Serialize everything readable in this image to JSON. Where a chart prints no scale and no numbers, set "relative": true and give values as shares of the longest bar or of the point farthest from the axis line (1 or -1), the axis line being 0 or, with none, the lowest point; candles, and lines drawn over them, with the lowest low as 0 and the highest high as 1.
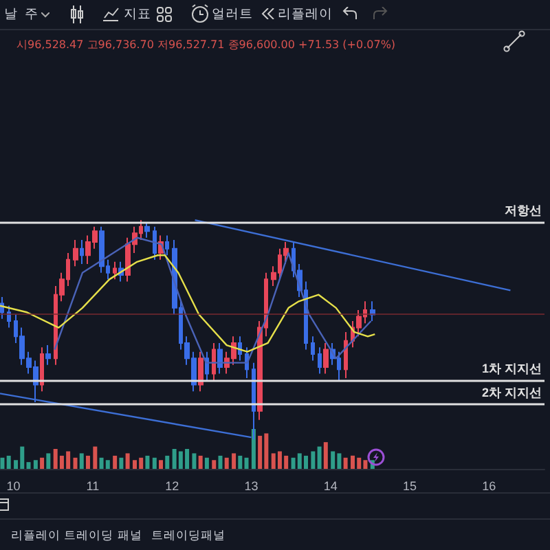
{
  "chart_data": [
    {
      "type": "candlestick",
      "relative": true,
      "tick_labels": false,
      "xlim": [
        9.83,
        16.7
      ],
      "xticks": [
        10,
        11,
        12,
        13,
        14,
        15,
        16
      ],
      "annotations": [
        "날",
        "주",
        "지표",
        "얼러트",
        "리플레이",
        "시96,528.47 고96,736.70 저96,527.71 종96,600.00 +71.53 (+0.07%)"
      ],
      "x": [
        9.86,
        9.94,
        10.03,
        10.11,
        10.19,
        10.28,
        10.36,
        10.44,
        10.53,
        10.61,
        10.69,
        10.78,
        10.86,
        10.94,
        11.03,
        11.11,
        11.19,
        11.28,
        11.36,
        11.44,
        11.53,
        11.61,
        11.69,
        11.78,
        11.86,
        11.94,
        12.03,
        12.11,
        12.19,
        12.28,
        12.36,
        12.44,
        12.53,
        12.61,
        12.69,
        12.78,
        12.86,
        12.94,
        13.03,
        13.11,
        13.19,
        13.28,
        13.36,
        13.44,
        13.53,
        13.61,
        13.69,
        13.78,
        13.86,
        13.94,
        14.03,
        14.11,
        14.19,
        14.28,
        14.36,
        14.44,
        14.53
      ],
      "ohlc": [
        [
          0.62,
          0.65,
          0.55,
          0.58
        ],
        [
          0.58,
          0.61,
          0.51,
          0.54
        ],
        [
          0.54,
          0.57,
          0.44,
          0.47
        ],
        [
          0.47,
          0.51,
          0.34,
          0.37
        ],
        [
          0.37,
          0.4,
          0.3,
          0.33
        ],
        [
          0.33,
          0.36,
          0.17,
          0.25
        ],
        [
          0.25,
          0.42,
          0.22,
          0.39
        ],
        [
          0.39,
          0.43,
          0.34,
          0.37
        ],
        [
          0.37,
          0.7,
          0.34,
          0.66
        ],
        [
          0.66,
          0.76,
          0.63,
          0.73
        ],
        [
          0.73,
          0.85,
          0.7,
          0.82
        ],
        [
          0.82,
          0.91,
          0.79,
          0.87
        ],
        [
          0.87,
          0.91,
          0.8,
          0.84
        ],
        [
          0.84,
          0.93,
          0.8,
          0.9
        ],
        [
          0.9,
          0.97,
          0.87,
          0.95
        ],
        [
          0.95,
          0.97,
          0.76,
          0.79
        ],
        [
          0.79,
          0.82,
          0.73,
          0.76
        ],
        [
          0.76,
          0.81,
          0.73,
          0.78
        ],
        [
          0.78,
          0.81,
          0.72,
          0.75
        ],
        [
          0.75,
          0.92,
          0.72,
          0.89
        ],
        [
          0.89,
          0.97,
          0.85,
          0.94
        ],
        [
          0.94,
          1.0,
          0.91,
          0.97
        ],
        [
          0.97,
          0.99,
          0.92,
          0.95
        ],
        [
          0.95,
          0.97,
          0.82,
          0.85
        ],
        [
          0.85,
          0.93,
          0.82,
          0.9
        ],
        [
          0.9,
          0.93,
          0.84,
          0.87
        ],
        [
          0.87,
          0.91,
          0.57,
          0.6
        ],
        [
          0.6,
          0.63,
          0.41,
          0.44
        ],
        [
          0.44,
          0.47,
          0.34,
          0.37
        ],
        [
          0.37,
          0.4,
          0.22,
          0.25
        ],
        [
          0.25,
          0.4,
          0.22,
          0.37
        ],
        [
          0.37,
          0.4,
          0.27,
          0.3
        ],
        [
          0.3,
          0.44,
          0.27,
          0.41
        ],
        [
          0.41,
          0.44,
          0.3,
          0.33
        ],
        [
          0.33,
          0.4,
          0.3,
          0.37
        ],
        [
          0.37,
          0.47,
          0.34,
          0.44
        ],
        [
          0.44,
          0.47,
          0.36,
          0.39
        ],
        [
          0.39,
          0.42,
          0.28,
          0.32
        ],
        [
          0.32,
          0.35,
          0.0,
          0.13
        ],
        [
          0.13,
          0.54,
          0.09,
          0.51
        ],
        [
          0.51,
          0.76,
          0.47,
          0.73
        ],
        [
          0.73,
          0.79,
          0.7,
          0.76
        ],
        [
          0.76,
          0.87,
          0.73,
          0.84
        ],
        [
          0.84,
          0.9,
          0.8,
          0.87
        ],
        [
          0.87,
          0.9,
          0.74,
          0.77
        ],
        [
          0.77,
          0.8,
          0.65,
          0.68
        ],
        [
          0.68,
          0.72,
          0.41,
          0.44
        ],
        [
          0.44,
          0.47,
          0.36,
          0.39
        ],
        [
          0.39,
          0.42,
          0.3,
          0.33
        ],
        [
          0.33,
          0.44,
          0.3,
          0.41
        ],
        [
          0.41,
          0.44,
          0.34,
          0.37
        ],
        [
          0.37,
          0.4,
          0.27,
          0.32
        ],
        [
          0.32,
          0.49,
          0.28,
          0.45
        ],
        [
          0.45,
          0.54,
          0.42,
          0.51
        ],
        [
          0.51,
          0.59,
          0.47,
          0.56
        ],
        [
          0.56,
          0.63,
          0.53,
          0.59
        ],
        [
          0.59,
          0.63,
          0.54,
          0.57
        ]
      ],
      "colors": [
        "#3a6ee8",
        "#3a6ee8",
        "#3a6ee8",
        "#3a6ee8",
        "#3a6ee8",
        "#3a6ee8",
        "#e8475a",
        "#3a6ee8",
        "#e8475a",
        "#e8475a",
        "#e8475a",
        "#e8475a",
        "#3a6ee8",
        "#e8475a",
        "#e8475a",
        "#3a6ee8",
        "#3a6ee8",
        "#e8475a",
        "#3a6ee8",
        "#e8475a",
        "#e8475a",
        "#e8475a",
        "#3a6ee8",
        "#3a6ee8",
        "#e8475a",
        "#3a6ee8",
        "#3a6ee8",
        "#3a6ee8",
        "#3a6ee8",
        "#3a6ee8",
        "#e8475a",
        "#3a6ee8",
        "#e8475a",
        "#3a6ee8",
        "#e8475a",
        "#e8475a",
        "#3a6ee8",
        "#3a6ee8",
        "#3a6ee8",
        "#e8475a",
        "#e8475a",
        "#e8475a",
        "#e8475a",
        "#e8475a",
        "#3a6ee8",
        "#3a6ee8",
        "#3a6ee8",
        "#3a6ee8",
        "#3a6ee8",
        "#e8475a",
        "#3a6ee8",
        "#3a6ee8",
        "#e8475a",
        "#e8475a",
        "#e8475a",
        "#e8475a",
        "#3a6ee8"
      ],
      "series": [
        {
          "type": "line",
          "color": "#e6e04a",
          "x": [
            9.83,
            10.17,
            10.57,
            10.87,
            11.21,
            11.56,
            11.82,
            11.91,
            12.08,
            12.34,
            12.69,
            12.95,
            13.21,
            13.47,
            13.6,
            13.85,
            14.07,
            14.3,
            14.47,
            14.56
          ],
          "values": [
            0.61,
            0.58,
            0.51,
            0.6,
            0.73,
            0.81,
            0.84,
            0.84,
            0.76,
            0.57,
            0.43,
            0.4,
            0.44,
            0.6,
            0.63,
            0.66,
            0.6,
            0.49,
            0.47,
            0.48
          ]
        },
        {
          "type": "line",
          "color": "#4a63b8",
          "x": [
            10.52,
            10.87,
            11.56,
            11.87,
            12.17,
            12.43,
            12.95,
            13.21,
            13.47,
            13.73,
            14.07,
            14.51
          ],
          "values": [
            0.41,
            0.76,
            0.92,
            0.89,
            0.57,
            0.35,
            0.35,
            0.57,
            0.85,
            0.57,
            0.37,
            0.54
          ]
        },
        {
          "type": "line",
          "color": "#3d6fd6",
          "x": [
            12.29,
            16.27
          ],
          "values": [
            1.0,
            0.68
          ]
        },
        {
          "type": "line",
          "color": "#3d6fd6",
          "x": [
            9.83,
            13.0
          ],
          "values": [
            0.21,
            0.01
          ]
        }
      ],
      "ref_lines": [
        {
          "axis": "y",
          "value": 0.99,
          "label": "저항선",
          "color": "#e0e0e0"
        },
        {
          "axis": "y",
          "value": 0.27,
          "label": "1차 지지선",
          "color": "#e0e0e0"
        },
        {
          "axis": "y",
          "value": 0.16,
          "label": "2차 지지선",
          "color": "#e0e0e0"
        },
        {
          "axis": "y",
          "value": 0.57,
          "label": null,
          "color": "#7a2a30"
        }
      ]
    },
    {
      "type": "bar",
      "relative": true,
      "xlim": [
        9.83,
        16.7
      ],
      "xticks": [
        10,
        11,
        12,
        13,
        14,
        15,
        16
      ],
      "annotations": [
        "리플레이 트레이딩 패널",
        "트레이딩패널"
      ],
      "x": [
        9.86,
        9.94,
        10.03,
        10.11,
        10.19,
        10.28,
        10.36,
        10.44,
        10.53,
        10.61,
        10.69,
        10.78,
        10.86,
        10.94,
        11.03,
        11.11,
        11.19,
        11.28,
        11.36,
        11.44,
        11.53,
        11.61,
        11.69,
        11.78,
        11.86,
        11.94,
        12.03,
        12.11,
        12.19,
        12.28,
        12.36,
        12.44,
        12.53,
        12.61,
        12.69,
        12.78,
        12.86,
        12.94,
        13.03,
        13.11,
        13.19,
        13.28,
        13.36,
        13.44,
        13.53,
        13.61,
        13.69,
        13.78,
        13.86,
        13.94,
        14.03,
        14.11,
        14.19,
        14.28,
        14.36,
        14.44,
        14.53
      ],
      "values": [
        0.28,
        0.33,
        0.22,
        0.56,
        0.17,
        0.22,
        0.28,
        0.39,
        0.5,
        0.33,
        0.44,
        0.28,
        0.39,
        0.33,
        0.56,
        0.28,
        0.22,
        0.33,
        0.28,
        0.39,
        0.22,
        0.28,
        0.33,
        0.28,
        0.22,
        0.33,
        0.5,
        0.44,
        0.5,
        0.39,
        0.33,
        0.28,
        0.22,
        0.33,
        0.28,
        0.39,
        0.33,
        0.28,
        1,
        0.83,
        0.89,
        0.39,
        0.44,
        0.33,
        0.28,
        0.39,
        0.33,
        0.44,
        0.56,
        0.67,
        0.44,
        0.39,
        0.28,
        0.33,
        0.28,
        0.22,
        0.22
      ],
      "colors": [
        "#2f9e8a",
        "#2f9e8a",
        "#2f9e8a",
        "#2f9e8a",
        "#2f9e8a",
        "#2f9e8a",
        "#d9534f",
        "#2f9e8a",
        "#d9534f",
        "#d9534f",
        "#d9534f",
        "#d9534f",
        "#2f9e8a",
        "#d9534f",
        "#d9534f",
        "#2f9e8a",
        "#2f9e8a",
        "#d9534f",
        "#2f9e8a",
        "#d9534f",
        "#d9534f",
        "#d9534f",
        "#2f9e8a",
        "#2f9e8a",
        "#d9534f",
        "#2f9e8a",
        "#2f9e8a",
        "#2f9e8a",
        "#2f9e8a",
        "#2f9e8a",
        "#d9534f",
        "#2f9e8a",
        "#d9534f",
        "#2f9e8a",
        "#d9534f",
        "#d9534f",
        "#2f9e8a",
        "#2f9e8a",
        "#2f9e8a",
        "#d9534f",
        "#d9534f",
        "#d9534f",
        "#d9534f",
        "#d9534f",
        "#2f9e8a",
        "#2f9e8a",
        "#2f9e8a",
        "#2f9e8a",
        "#2f9e8a",
        "#d9534f",
        "#2f9e8a",
        "#2f9e8a",
        "#d9534f",
        "#d9534f",
        "#d9534f",
        "#d9534f",
        "#2f9e8a"
      ]
    }
  ]
}
